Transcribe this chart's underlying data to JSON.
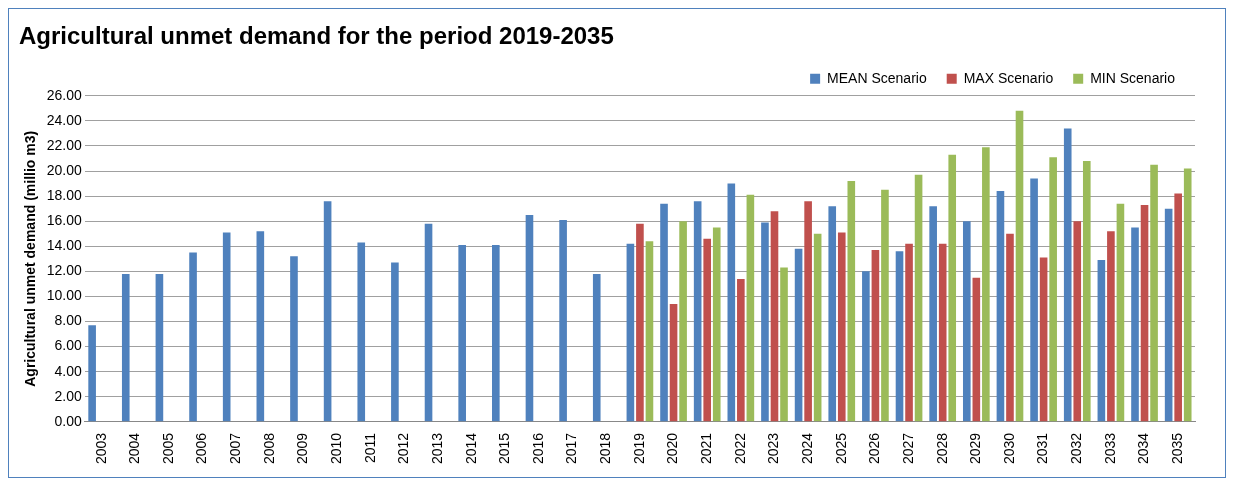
{
  "chart_data": {
    "type": "bar",
    "title": "Agricultural unmet demand for the period 2019-2035",
    "ylabel": "Agricultural unmet demand (millio m3)",
    "categories": [
      "2003",
      "2004",
      "2005",
      "2006",
      "2007",
      "2008",
      "2009",
      "2010",
      "2011",
      "2012",
      "2013",
      "2014",
      "2015",
      "2016",
      "2017",
      "2018",
      "2019",
      "2020",
      "2021",
      "2022",
      "2023",
      "2024",
      "2025",
      "2026",
      "2027",
      "2028",
      "2029",
      "2030",
      "2031",
      "2032",
      "2033",
      "2034",
      "2035"
    ],
    "series": [
      {
        "name": "MEAN Scenario",
        "color": "#4f81bd",
        "values": [
          7.7,
          11.8,
          11.8,
          13.5,
          15.1,
          15.2,
          13.2,
          17.6,
          14.3,
          12.7,
          15.8,
          14.1,
          14.1,
          16.5,
          16.1,
          11.8,
          14.2,
          17.4,
          17.6,
          19.0,
          15.9,
          13.8,
          17.2,
          12.0,
          13.6,
          17.2,
          16.0,
          18.4,
          19.4,
          23.4,
          12.9,
          15.5,
          17.0
        ]
      },
      {
        "name": "MAX Scenario",
        "color": "#c0504d",
        "values": [
          null,
          null,
          null,
          null,
          null,
          null,
          null,
          null,
          null,
          null,
          null,
          null,
          null,
          null,
          null,
          null,
          15.8,
          9.4,
          14.6,
          11.4,
          16.8,
          17.6,
          15.1,
          13.7,
          14.2,
          14.2,
          11.5,
          15.0,
          13.1,
          16.0,
          15.2,
          17.3,
          18.2
        ]
      },
      {
        "name": "MIN Scenario",
        "color": "#9bbb59",
        "values": [
          null,
          null,
          null,
          null,
          null,
          null,
          null,
          null,
          null,
          null,
          null,
          null,
          null,
          null,
          null,
          null,
          14.4,
          16.0,
          15.5,
          18.1,
          12.3,
          15.0,
          19.2,
          18.5,
          19.7,
          21.3,
          21.9,
          24.8,
          21.1,
          20.8,
          17.4,
          20.5,
          20.2
        ]
      }
    ],
    "ylim": [
      0,
      26
    ],
    "yticks": [
      {
        "value": 0,
        "label": "0.00"
      },
      {
        "value": 2,
        "label": "2.00"
      },
      {
        "value": 4,
        "label": "4.00"
      },
      {
        "value": 6,
        "label": "6.00"
      },
      {
        "value": 8,
        "label": "8.00"
      },
      {
        "value": 10,
        "label": "10.00"
      },
      {
        "value": 12,
        "label": "12.00"
      },
      {
        "value": 14,
        "label": "14.00"
      },
      {
        "value": 16,
        "label": "16.00"
      },
      {
        "value": 18,
        "label": "18.00"
      },
      {
        "value": 20,
        "label": "20.00"
      },
      {
        "value": 22,
        "label": "22.00"
      },
      {
        "value": 24,
        "label": "24.00"
      },
      {
        "value": 26,
        "label": "26.00"
      }
    ],
    "grid": "y",
    "legend": "top right"
  }
}
